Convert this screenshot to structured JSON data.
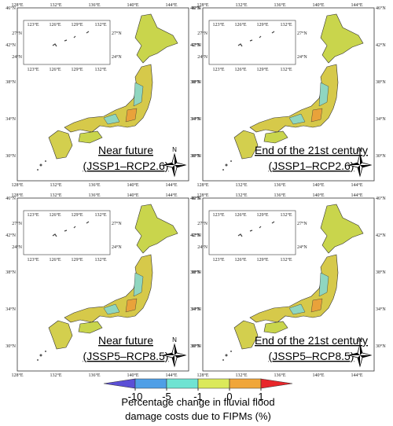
{
  "axes_labels": {
    "lon": [
      "128°E",
      "132°E",
      "136°E",
      "140°E",
      "144°E"
    ],
    "lat": [
      "46°N",
      "42°N",
      "38°N",
      "34°N",
      "30°N"
    ],
    "inset_lon": [
      "123°E",
      "126°E",
      "129°E",
      "132°E"
    ],
    "inset_lat": [
      "27°N",
      "24°N"
    ]
  },
  "panels": [
    {
      "title": [
        "Near future",
        "(JSSP1–RCP2.6)"
      ]
    },
    {
      "title": [
        "End of the 21st century",
        "(JSSP1–RCP2.6)"
      ]
    },
    {
      "title": [
        "Near future",
        "(JSSP5–RCP8.5)"
      ]
    },
    {
      "title": [
        "End of the 21st century",
        "(JSSP5–RCP8.5)"
      ]
    }
  ],
  "compass": "N",
  "colorbar": {
    "colors": [
      "#5b4fd6",
      "#4f9fe6",
      "#6fe3d2",
      "#dbe95a",
      "#f0a63a",
      "#e8262a"
    ],
    "ticks": [
      -10,
      -5,
      -1,
      0,
      1
    ],
    "label": [
      "Percentage change in fluvial flood",
      "damage costs due to FIPMs (%)"
    ]
  }
}
